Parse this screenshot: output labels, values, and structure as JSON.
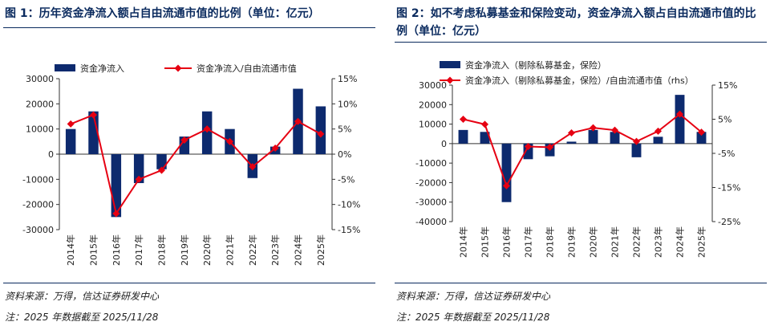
{
  "charts": [
    {
      "title": "图 1：历年资金净流入额占自由流通市值的比例（单位：亿元）",
      "source": "资料来源：万得，信达证券研发中心",
      "note": "注：2025 年数据截至 2025/11/28",
      "legend": [
        "资金净流入",
        "资金净流入/自由流通市值"
      ]
    },
    {
      "title": "图 2：如不考虑私募基金和保险变动，资金净流入额占自由流通市值的比例（单位：亿元）",
      "source": "资料来源：万得，信达证券研发中心",
      "note": "注：2025 年数据截至 2025/11/28",
      "legend": [
        "资金净流入（剔除私募基金，保险）",
        "资金净流入（剔除私募基金，保险）/自由流通市值（rhs）"
      ]
    }
  ],
  "colors": {
    "bar": "#0d2a6e",
    "line": "#e60012",
    "title": "#0a2a5e"
  },
  "chart_data": [
    {
      "type": "bar",
      "categories": [
        "2014年",
        "2015年",
        "2016年",
        "2017年",
        "2018年",
        "2019年",
        "2020年",
        "2021年",
        "2022年",
        "2023年",
        "2024年",
        "2025年"
      ],
      "series": [
        {
          "name": "资金净流入",
          "type": "bar",
          "axis": "left",
          "values": [
            10000,
            17000,
            -25000,
            -11500,
            -6000,
            7000,
            17000,
            10000,
            -9500,
            3000,
            26000,
            19000
          ]
        },
        {
          "name": "资金净流入/自由流通市值",
          "type": "line",
          "axis": "right",
          "values": [
            6.0,
            7.8,
            -11.8,
            -5.0,
            -3.2,
            2.8,
            5.0,
            2.5,
            -2.5,
            1.2,
            6.5,
            4.0
          ]
        }
      ],
      "ylim": [
        -30000,
        30000
      ],
      "yticks": [
        -30000,
        -20000,
        -10000,
        0,
        10000,
        20000,
        30000
      ],
      "y2lim": [
        -15,
        15
      ],
      "y2ticks": [
        -15,
        -10,
        -5,
        0,
        5,
        10,
        15
      ],
      "legend_position": "top",
      "grid": false
    },
    {
      "type": "bar",
      "categories": [
        "2014年",
        "2015年",
        "2016年",
        "2017年",
        "2018年",
        "2019年",
        "2020年",
        "2021年",
        "2022年",
        "2023年",
        "2024年",
        "2025年"
      ],
      "series": [
        {
          "name": "资金净流入（剔除私募基金，保险）",
          "type": "bar",
          "axis": "left",
          "values": [
            7000,
            6000,
            -30000,
            -8000,
            -6500,
            1000,
            7000,
            6000,
            -7000,
            3500,
            25000,
            6000
          ]
        },
        {
          "name": "资金净流入（剔除私募基金，保险）/自由流通市值（rhs）",
          "type": "line",
          "axis": "right",
          "values": [
            5.0,
            3.5,
            -14.5,
            -3.0,
            -3.2,
            1.0,
            2.5,
            1.8,
            -1.5,
            1.5,
            6.5,
            1.2
          ]
        }
      ],
      "ylim": [
        -40000,
        30000
      ],
      "yticks": [
        -40000,
        -30000,
        -20000,
        -10000,
        0,
        10000,
        20000,
        30000
      ],
      "y2lim": [
        -25,
        15
      ],
      "y2ticks": [
        -25,
        -15,
        -5,
        5,
        15
      ],
      "legend_position": "top",
      "grid": false
    }
  ]
}
